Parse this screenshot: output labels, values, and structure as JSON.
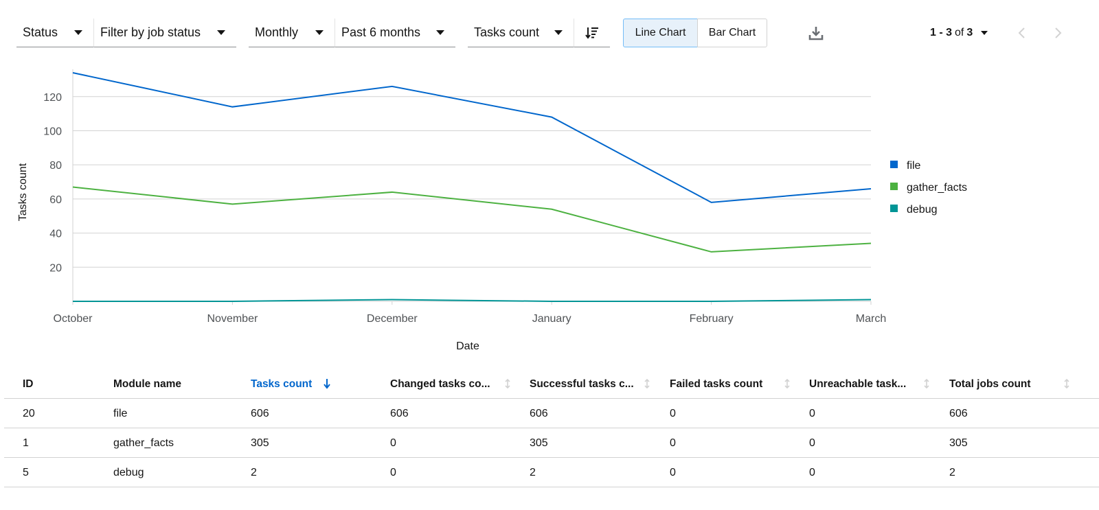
{
  "toolbar": {
    "status_label": "Status",
    "job_status_label": "Filter by job status",
    "granularity_label": "Monthly",
    "range_label": "Past 6 months",
    "sort_by_label": "Tasks count",
    "line_chart_label": "Line Chart",
    "bar_chart_label": "Bar Chart",
    "active_view": "line"
  },
  "pagination": {
    "range": "1 - 3",
    "of": "of",
    "total": "3"
  },
  "chart_data": {
    "type": "line",
    "x": [
      "October",
      "November",
      "December",
      "January",
      "February",
      "March"
    ],
    "xlabel": "Date",
    "ylabel": "Tasks count",
    "ylim": [
      0,
      136
    ],
    "yticks": [
      20,
      40,
      60,
      80,
      100,
      120
    ],
    "grid": true,
    "legend_position": "right",
    "series": [
      {
        "name": "file",
        "color": "#0066cc",
        "values": [
          134,
          114,
          126,
          108,
          58,
          66
        ]
      },
      {
        "name": "gather_facts",
        "color": "#4cb140",
        "values": [
          67,
          57,
          64,
          54,
          29,
          34
        ]
      },
      {
        "name": "debug",
        "color": "#009596",
        "values": [
          0,
          0,
          1,
          0,
          0,
          1
        ]
      }
    ]
  },
  "table": {
    "columns": [
      "ID",
      "Module name",
      "Tasks count",
      "Changed tasks co...",
      "Successful tasks c...",
      "Failed tasks count",
      "Unreachable task...",
      "Total jobs count"
    ],
    "sorted_column": 2,
    "rows": [
      [
        "20",
        "file",
        "606",
        "606",
        "606",
        "0",
        "0",
        "606"
      ],
      [
        "1",
        "gather_facts",
        "305",
        "0",
        "305",
        "0",
        "0",
        "305"
      ],
      [
        "5",
        "debug",
        "2",
        "0",
        "2",
        "0",
        "0",
        "2"
      ]
    ]
  }
}
